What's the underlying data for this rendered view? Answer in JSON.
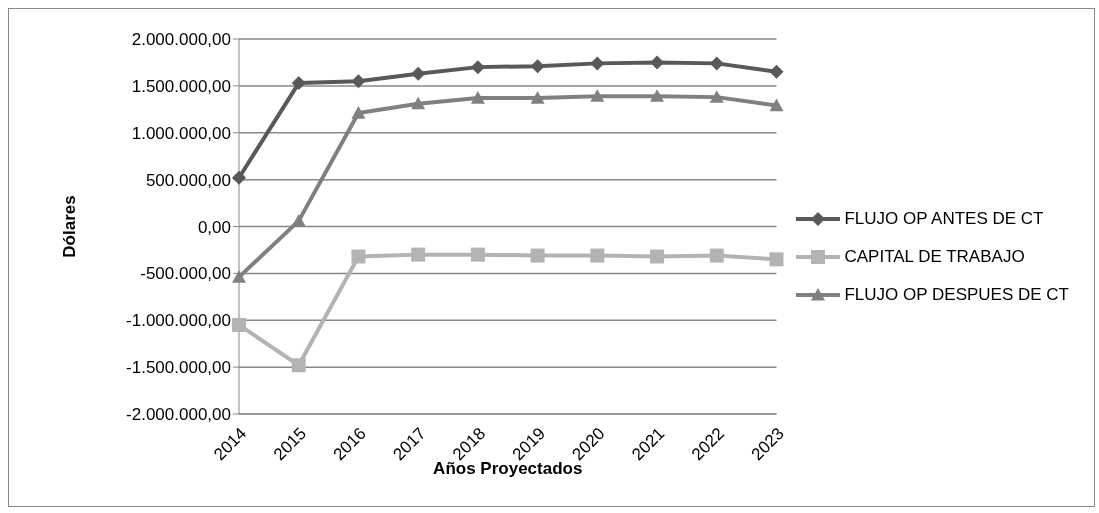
{
  "chart_data": {
    "type": "line",
    "xlabel": "Años Proyectados",
    "ylabel": "Dólares",
    "categories": [
      "2014",
      "2015",
      "2016",
      "2017",
      "2018",
      "2019",
      "2020",
      "2021",
      "2022",
      "2023"
    ],
    "series": [
      {
        "name": "FLUJO OP ANTES DE CT",
        "color": "#595959",
        "marker": "diamond",
        "values": [
          520000,
          1530000,
          1550000,
          1630000,
          1700000,
          1710000,
          1740000,
          1750000,
          1740000,
          1650000
        ]
      },
      {
        "name": "CAPITAL DE TRABAJO",
        "color": "#b3b3b3",
        "marker": "square",
        "values": [
          -1050000,
          -1480000,
          -320000,
          -300000,
          -300000,
          -310000,
          -310000,
          -320000,
          -310000,
          -350000
        ]
      },
      {
        "name": "FLUJO OP DESPUES DE CT",
        "color": "#808080",
        "marker": "triangle",
        "values": [
          -540000,
          60000,
          1210000,
          1310000,
          1370000,
          1370000,
          1390000,
          1390000,
          1380000,
          1290000
        ]
      }
    ],
    "ylim": [
      -2000000,
      2000000
    ],
    "yticks": [
      {
        "value": -2000000,
        "label": "-2.000.000,00"
      },
      {
        "value": -1500000,
        "label": "-1.500.000,00"
      },
      {
        "value": -1000000,
        "label": "-1.000.000,00"
      },
      {
        "value": -500000,
        "label": "-500.000,00"
      },
      {
        "value": 0,
        "label": "0,00"
      },
      {
        "value": 500000,
        "label": "500.000,00"
      },
      {
        "value": 1000000,
        "label": "1.000.000,00"
      },
      {
        "value": 1500000,
        "label": "1.500.000,00"
      },
      {
        "value": 2000000,
        "label": "2.000.000,00"
      }
    ],
    "grid": "y",
    "legend": "right",
    "line_style": "solid"
  }
}
